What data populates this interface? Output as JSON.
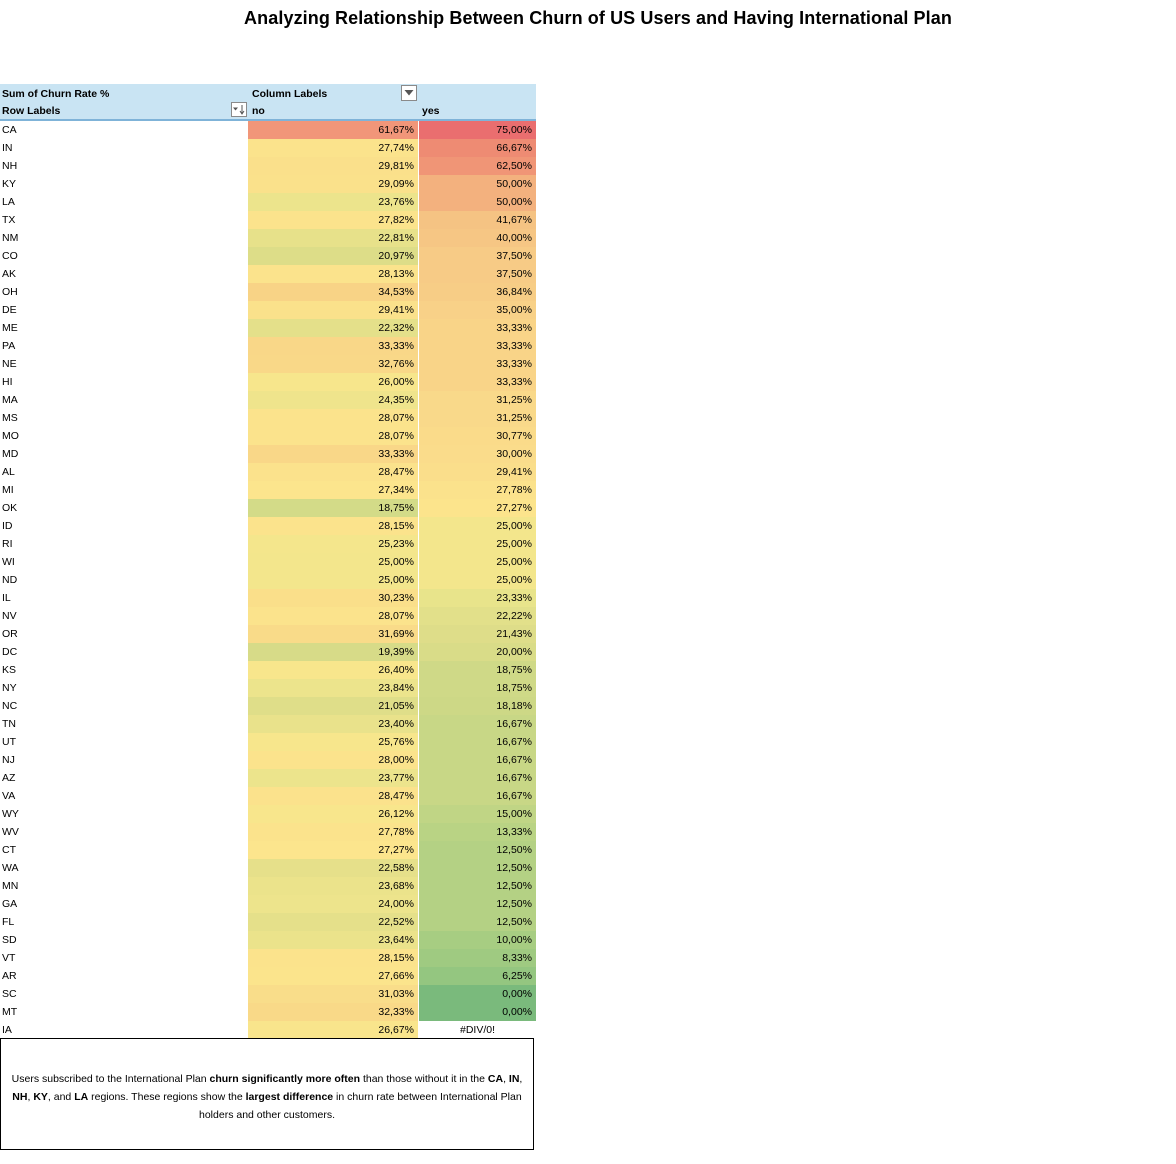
{
  "title": "Analyzing Relationship Between Churn of US Users and Having International Plan",
  "pivot": {
    "values_label": "Sum of Churn Rate %",
    "column_labels": "Column Labels",
    "row_labels": "Row Labels",
    "col_no": "no",
    "col_yes": "yes",
    "filter_icon": "dropdown-arrow-icon",
    "sort_icon": "sort-filter-icon",
    "rows": [
      {
        "state": "CA",
        "no": "61,67%",
        "yes": "75,00%",
        "no_color": "#f19679",
        "yes_color": "#ea6e6f"
      },
      {
        "state": "IN",
        "no": "27,74%",
        "yes": "66,67%",
        "no_color": "#fbe38c",
        "yes_color": "#ee8b73"
      },
      {
        "state": "NH",
        "no": "29,81%",
        "yes": "62,50%",
        "no_color": "#fae08b",
        "yes_color": "#f09576"
      },
      {
        "state": "KY",
        "no": "29,09%",
        "yes": "50,00%",
        "no_color": "#fae18b",
        "yes_color": "#f3b17e"
      },
      {
        "state": "LA",
        "no": "23,76%",
        "yes": "50,00%",
        "no_color": "#ece48c",
        "yes_color": "#f3b17e"
      },
      {
        "state": "TX",
        "no": "27,82%",
        "yes": "41,67%",
        "no_color": "#fbe38c",
        "yes_color": "#f5c383"
      },
      {
        "state": "NM",
        "no": "22,81%",
        "yes": "40,00%",
        "no_color": "#e7e18a",
        "yes_color": "#f6c684"
      },
      {
        "state": "CO",
        "no": "20,97%",
        "yes": "37,50%",
        "no_color": "#dddd88",
        "yes_color": "#f7cb86"
      },
      {
        "state": "AK",
        "no": "28,13%",
        "yes": "37,50%",
        "no_color": "#fbe38c",
        "yes_color": "#f7cb86"
      },
      {
        "state": "OH",
        "no": "34,53%",
        "yes": "36,84%",
        "no_color": "#f8d386",
        "yes_color": "#f7cd86"
      },
      {
        "state": "DE",
        "no": "29,41%",
        "yes": "35,00%",
        "no_color": "#fae18b",
        "yes_color": "#f8d188"
      },
      {
        "state": "ME",
        "no": "22,32%",
        "yes": "33,33%",
        "no_color": "#e4e08a",
        "yes_color": "#f9d488"
      },
      {
        "state": "PA",
        "no": "33,33%",
        "yes": "33,33%",
        "no_color": "#f9d788",
        "yes_color": "#f9d488"
      },
      {
        "state": "NE",
        "no": "32,76%",
        "yes": "33,33%",
        "no_color": "#f9d888",
        "yes_color": "#f9d488"
      },
      {
        "state": "HI",
        "no": "26,00%",
        "yes": "33,33%",
        "no_color": "#f7e68c",
        "yes_color": "#f9d488"
      },
      {
        "state": "MA",
        "no": "24,35%",
        "yes": "31,25%",
        "no_color": "#efe48c",
        "yes_color": "#f9d98a"
      },
      {
        "state": "MS",
        "no": "28,07%",
        "yes": "31,25%",
        "no_color": "#fbe38c",
        "yes_color": "#f9d98a"
      },
      {
        "state": "MO",
        "no": "28,07%",
        "yes": "30,77%",
        "no_color": "#fbe38c",
        "yes_color": "#fadb8a"
      },
      {
        "state": "MD",
        "no": "33,33%",
        "yes": "30,00%",
        "no_color": "#f9d788",
        "yes_color": "#fadc8b"
      },
      {
        "state": "AL",
        "no": "28,47%",
        "yes": "29,41%",
        "no_color": "#fbe28c",
        "yes_color": "#fade8b"
      },
      {
        "state": "MI",
        "no": "27,34%",
        "yes": "27,78%",
        "no_color": "#fce58d",
        "yes_color": "#fbe28c"
      },
      {
        "state": "OK",
        "no": "18,75%",
        "yes": "27,27%",
        "no_color": "#d3db88",
        "yes_color": "#fce48c"
      },
      {
        "state": "ID",
        "no": "28,15%",
        "yes": "25,00%",
        "no_color": "#fbe38c",
        "yes_color": "#f3e68c"
      },
      {
        "state": "RI",
        "no": "25,23%",
        "yes": "25,00%",
        "no_color": "#f4e68c",
        "yes_color": "#f3e68c"
      },
      {
        "state": "WI",
        "no": "25,00%",
        "yes": "25,00%",
        "no_color": "#f3e68c",
        "yes_color": "#f3e68c"
      },
      {
        "state": "ND",
        "no": "25,00%",
        "yes": "25,00%",
        "no_color": "#f3e68c",
        "yes_color": "#f3e68c"
      },
      {
        "state": "IL",
        "no": "30,23%",
        "yes": "23,33%",
        "no_color": "#fadf8a",
        "yes_color": "#e8e48b"
      },
      {
        "state": "NV",
        "no": "28,07%",
        "yes": "22,22%",
        "no_color": "#fbe38c",
        "yes_color": "#e2e08a"
      },
      {
        "state": "OR",
        "no": "31,69%",
        "yes": "21,43%",
        "no_color": "#f9db89",
        "yes_color": "#dedd89"
      },
      {
        "state": "DC",
        "no": "19,39%",
        "yes": "20,00%",
        "no_color": "#d7db88",
        "yes_color": "#d9dc88"
      },
      {
        "state": "KS",
        "no": "26,40%",
        "yes": "18,75%",
        "no_color": "#f8e68c",
        "yes_color": "#cfd987"
      },
      {
        "state": "NY",
        "no": "23,84%",
        "yes": "18,75%",
        "no_color": "#ece48c",
        "yes_color": "#cfd987"
      },
      {
        "state": "NC",
        "no": "21,05%",
        "yes": "18,18%",
        "no_color": "#dfde89",
        "yes_color": "#cdd886"
      },
      {
        "state": "TN",
        "no": "23,40%",
        "yes": "16,67%",
        "no_color": "#e9e28b",
        "yes_color": "#c8d786"
      },
      {
        "state": "UT",
        "no": "25,76%",
        "yes": "16,67%",
        "no_color": "#f7e68c",
        "yes_color": "#c8d786"
      },
      {
        "state": "NJ",
        "no": "28,00%",
        "yes": "16,67%",
        "no_color": "#fbe38c",
        "yes_color": "#c8d786"
      },
      {
        "state": "AZ",
        "no": "23,77%",
        "yes": "16,67%",
        "no_color": "#ece48c",
        "yes_color": "#c8d786"
      },
      {
        "state": "VA",
        "no": "28,47%",
        "yes": "16,67%",
        "no_color": "#fbe28c",
        "yes_color": "#c8d786"
      },
      {
        "state": "WY",
        "no": "26,12%",
        "yes": "15,00%",
        "no_color": "#f8e68c",
        "yes_color": "#c0d585"
      },
      {
        "state": "WV",
        "no": "27,78%",
        "yes": "13,33%",
        "no_color": "#fbe38c",
        "yes_color": "#b9d384"
      },
      {
        "state": "CT",
        "no": "27,27%",
        "yes": "12,50%",
        "no_color": "#fce58d",
        "yes_color": "#b4d184"
      },
      {
        "state": "WA",
        "no": "22,58%",
        "yes": "12,50%",
        "no_color": "#e6e08a",
        "yes_color": "#b4d184"
      },
      {
        "state": "MN",
        "no": "23,68%",
        "yes": "12,50%",
        "no_color": "#ebe38b",
        "yes_color": "#b4d184"
      },
      {
        "state": "GA",
        "no": "24,00%",
        "yes": "12,50%",
        "no_color": "#ede48c",
        "yes_color": "#b4d184"
      },
      {
        "state": "FL",
        "no": "22,52%",
        "yes": "12,50%",
        "no_color": "#e5e08a",
        "yes_color": "#b4d184"
      },
      {
        "state": "SD",
        "no": "23,64%",
        "yes": "10,00%",
        "no_color": "#ebe38b",
        "yes_color": "#a7cd82"
      },
      {
        "state": "VT",
        "no": "28,15%",
        "yes": "8,33%",
        "no_color": "#fbe38c",
        "yes_color": "#9fca81"
      },
      {
        "state": "AR",
        "no": "27,66%",
        "yes": "6,25%",
        "no_color": "#fbe48c",
        "yes_color": "#94c680"
      },
      {
        "state": "SC",
        "no": "31,03%",
        "yes": "0,00%",
        "no_color": "#f9dd8a",
        "yes_color": "#7aba7c"
      },
      {
        "state": "MT",
        "no": "32,33%",
        "yes": "0,00%",
        "no_color": "#f9d988",
        "yes_color": "#7aba7c"
      },
      {
        "state": "IA",
        "no": "26,67%",
        "yes": "#DIV/0!",
        "no_color": "#f9e58c",
        "yes_color": "#ffffff"
      }
    ]
  },
  "note": {
    "t1": "Users subscribed to the International Plan ",
    "b1": "churn significantly more often",
    "t2": " than those without it in the ",
    "b2": "CA",
    "t3": ", ",
    "b3": "IN",
    "t4": ", ",
    "b4": "NH",
    "t5": ", ",
    "b5": "KY",
    "t6": ", and ",
    "b6": "LA",
    "t7": " regions. These regions show the ",
    "b7": "largest difference",
    "t8": " in churn rate between International Plan holders and other customers."
  }
}
